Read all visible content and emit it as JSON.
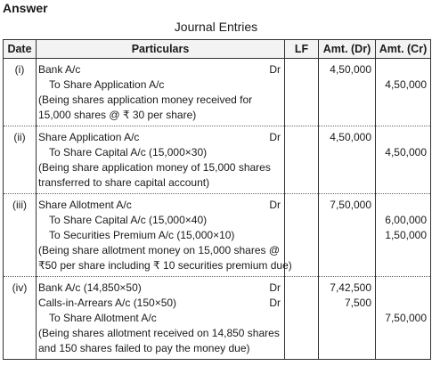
{
  "heading": "Answer",
  "caption": "Journal Entries",
  "columns": {
    "date": "Date",
    "particulars": "Particulars",
    "lf": "LF",
    "dr": "Amt. (Dr)",
    "cr": "Amt. (Cr)"
  },
  "entries": [
    {
      "date": "(i)",
      "lines": [
        {
          "text": "Bank A/c",
          "dr_mark": "Dr"
        },
        {
          "text": "To Share Application A/c"
        },
        {
          "text": "(Being shares application money received for"
        },
        {
          "text": "15,000 shares @ ₹ 30 per share)"
        }
      ],
      "dr": [
        "4,50,000",
        "",
        "",
        ""
      ],
      "cr": [
        "",
        "4,50,000",
        "",
        ""
      ]
    },
    {
      "date": "(ii)",
      "lines": [
        {
          "text": "Share Application A/c",
          "dr_mark": "Dr"
        },
        {
          "text": "To Share Capital A/c (15,000×30)"
        },
        {
          "text": "(Being share application money of 15,000 shares"
        },
        {
          "text": "transferred to share capital account)"
        }
      ],
      "dr": [
        "4,50,000",
        "",
        "",
        ""
      ],
      "cr": [
        "",
        "4,50,000",
        "",
        ""
      ]
    },
    {
      "date": "(iii)",
      "lines": [
        {
          "text": "Share Allotment A/c",
          "dr_mark": "Dr"
        },
        {
          "text": "To Share Capital A/c (15,000×40)"
        },
        {
          "text": "To Securities Premium A/c (15,000×10)"
        },
        {
          "text": "(Being share allotment money on 15,000 shares @"
        },
        {
          "text": "₹50 per share including ₹ 10 securities premium due)"
        }
      ],
      "dr": [
        "7,50,000",
        "",
        "",
        "",
        ""
      ],
      "cr": [
        "",
        "6,00,000",
        "1,50,000",
        "",
        ""
      ]
    },
    {
      "date": "(iv)",
      "lines": [
        {
          "text": "Bank A/c (14,850×50)",
          "dr_mark": "Dr"
        },
        {
          "text": "Calls-in-Arrears A/c (150×50)",
          "dr_mark": "Dr"
        },
        {
          "text": "To Share Allotment A/c"
        },
        {
          "text": "(Being shares allotment received on 14,850 shares"
        },
        {
          "text": "and 150 shares failed to pay the money due)"
        }
      ],
      "dr": [
        "7,42,500",
        "7,500",
        "",
        "",
        ""
      ],
      "cr": [
        "",
        "",
        "7,50,000",
        "",
        ""
      ]
    }
  ]
}
